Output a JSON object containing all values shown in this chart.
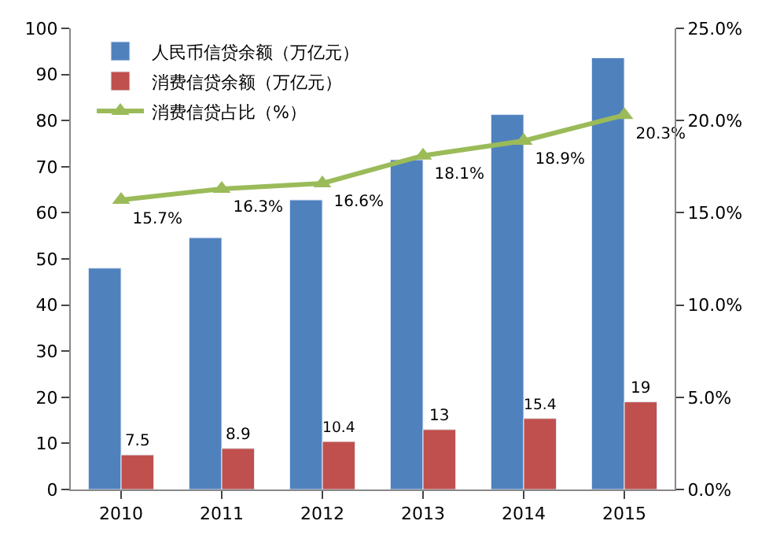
{
  "chart_data": {
    "type": "bar",
    "categories": [
      "2010",
      "2011",
      "2012",
      "2013",
      "2014",
      "2015"
    ],
    "series": [
      {
        "name": "人民币信贷余额（万亿元）",
        "color": "#4f81bd",
        "values": [
          48,
          54.6,
          62.8,
          71.5,
          81.3,
          93.6
        ]
      },
      {
        "name": "消费信贷余额（万亿元）",
        "color": "#c0504d",
        "values": [
          7.5,
          8.9,
          10.4,
          13,
          15.4,
          19
        ],
        "value_labels": [
          "7.5",
          "8.9",
          "10.4",
          "13",
          "15.4",
          "19"
        ]
      },
      {
        "name": "消费信贷占比（%）",
        "type": "line",
        "axis": "y2",
        "color": "#9bbb59",
        "marker": "triangle",
        "values": [
          15.7,
          16.3,
          16.6,
          18.1,
          18.9,
          20.3
        ],
        "value_labels": [
          "15.7%",
          "16.3%",
          "16.6%",
          "18.1%",
          "18.9%",
          "20.3%"
        ]
      }
    ],
    "ylim": [
      0,
      100
    ],
    "yticks": [
      0,
      10,
      20,
      30,
      40,
      50,
      60,
      70,
      80,
      90,
      100
    ],
    "y2lim": [
      0,
      25
    ],
    "y2ticks": [
      {
        "value": 0,
        "label": "0.0%"
      },
      {
        "value": 5,
        "label": "5.0%"
      },
      {
        "value": 10,
        "label": "10.0%"
      },
      {
        "value": 15,
        "label": "15.0%"
      },
      {
        "value": 20,
        "label": "20.0%"
      },
      {
        "value": 25,
        "label": "25.0%"
      }
    ],
    "legend": "top left"
  }
}
